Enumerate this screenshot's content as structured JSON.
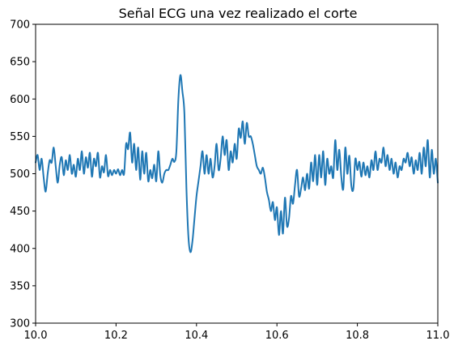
{
  "chart_data": {
    "type": "line",
    "title": "Señal ECG una vez realizado el corte",
    "xlabel": "",
    "ylabel": "",
    "xlim": [
      10.0,
      11.0
    ],
    "ylim": [
      300,
      700
    ],
    "x_ticks": [
      10.0,
      10.2,
      10.4,
      10.6,
      10.8,
      11.0
    ],
    "x_tick_labels": [
      "10.0",
      "10.2",
      "10.4",
      "10.6",
      "10.8",
      "11.0"
    ],
    "y_ticks": [
      300,
      350,
      400,
      450,
      500,
      550,
      600,
      650,
      700
    ],
    "y_tick_labels": [
      "300",
      "350",
      "400",
      "450",
      "500",
      "550",
      "600",
      "650",
      "700"
    ],
    "grid": false,
    "line_color": "#1f77b4",
    "series": [
      {
        "x": [
          10.0,
          10.005,
          10.01,
          10.015,
          10.02,
          10.025,
          10.03,
          10.035,
          10.04,
          10.045,
          10.05,
          10.055,
          10.06,
          10.065,
          10.07,
          10.075,
          10.08,
          10.085,
          10.09,
          10.095,
          10.1,
          10.105,
          10.11,
          10.115,
          10.12,
          10.125,
          10.13,
          10.135,
          10.14,
          10.145,
          10.15,
          10.155,
          10.16,
          10.165,
          10.17,
          10.175,
          10.18,
          10.185,
          10.19,
          10.195,
          10.2,
          10.205,
          10.21,
          10.215,
          10.22,
          10.225,
          10.23,
          10.235,
          10.24,
          10.245,
          10.25,
          10.255,
          10.26,
          10.265,
          10.27,
          10.275,
          10.28,
          10.285,
          10.29,
          10.295,
          10.3,
          10.305,
          10.31,
          10.315,
          10.32,
          10.325,
          10.33,
          10.335,
          10.34,
          10.345,
          10.35,
          10.355,
          10.36,
          10.365,
          10.37,
          10.375,
          10.38,
          10.385,
          10.39,
          10.395,
          10.4,
          10.405,
          10.41,
          10.415,
          10.42,
          10.425,
          10.43,
          10.435,
          10.44,
          10.445,
          10.45,
          10.455,
          10.46,
          10.465,
          10.47,
          10.475,
          10.48,
          10.485,
          10.49,
          10.495,
          10.5,
          10.505,
          10.51,
          10.515,
          10.52,
          10.525,
          10.53,
          10.535,
          10.54,
          10.545,
          10.55,
          10.555,
          10.56,
          10.565,
          10.57,
          10.575,
          10.58,
          10.585,
          10.59,
          10.595,
          10.6,
          10.605,
          10.61,
          10.615,
          10.62,
          10.625,
          10.63,
          10.635,
          10.64,
          10.645,
          10.65,
          10.655,
          10.66,
          10.665,
          10.67,
          10.675,
          10.68,
          10.685,
          10.69,
          10.695,
          10.7,
          10.705,
          10.71,
          10.715,
          10.72,
          10.725,
          10.73,
          10.735,
          10.74,
          10.745,
          10.75,
          10.755,
          10.76,
          10.765,
          10.77,
          10.775,
          10.78,
          10.785,
          10.79,
          10.795,
          10.8,
          10.805,
          10.81,
          10.815,
          10.82,
          10.825,
          10.83,
          10.835,
          10.84,
          10.845,
          10.85,
          10.855,
          10.86,
          10.865,
          10.87,
          10.875,
          10.88,
          10.885,
          10.89,
          10.895,
          10.9,
          10.905,
          10.91,
          10.915,
          10.92,
          10.925,
          10.93,
          10.935,
          10.94,
          10.945,
          10.95,
          10.955,
          10.96,
          10.965,
          10.97,
          10.975,
          10.98,
          10.985,
          10.99,
          10.995,
          11.0
        ],
        "y": [
          515,
          525,
          505,
          520,
          495,
          476,
          500,
          518,
          515,
          535,
          510,
          488,
          512,
          522,
          498,
          518,
          505,
          525,
          500,
          512,
          496,
          520,
          505,
          530,
          500,
          522,
          508,
          528,
          496,
          520,
          510,
          528,
          495,
          510,
          502,
          525,
          497,
          505,
          498,
          505,
          500,
          506,
          498,
          505,
          500,
          540,
          533,
          555,
          515,
          540,
          505,
          535,
          492,
          530,
          500,
          528,
          490,
          505,
          494,
          512,
          490,
          530,
          498,
          488,
          500,
          505,
          505,
          512,
          520,
          516,
          530,
          600,
          632,
          610,
          580,
          480,
          415,
          395,
          410,
          440,
          470,
          490,
          510,
          530,
          500,
          525,
          500,
          520,
          495,
          510,
          540,
          505,
          520,
          550,
          525,
          545,
          505,
          530,
          515,
          540,
          520,
          560,
          548,
          570,
          540,
          568,
          550,
          550,
          540,
          525,
          510,
          505,
          500,
          508,
          495,
          476,
          465,
          450,
          462,
          438,
          455,
          418,
          450,
          420,
          468,
          430,
          440,
          470,
          460,
          485,
          505,
          470,
          480,
          495,
          478,
          500,
          480,
          515,
          490,
          525,
          485,
          525,
          495,
          530,
          485,
          520,
          500,
          510,
          495,
          545,
          505,
          532,
          496,
          480,
          535,
          500,
          524,
          484,
          480,
          520,
          505,
          516,
          496,
          515,
          498,
          510,
          495,
          518,
          505,
          530,
          505,
          520,
          515,
          535,
          510,
          525,
          505,
          520,
          500,
          515,
          495,
          510,
          505,
          520,
          515,
          528,
          510,
          522,
          500,
          518,
          505,
          528,
          500,
          535,
          510,
          545,
          495,
          532,
          500,
          520,
          488
        ]
      }
    ]
  }
}
